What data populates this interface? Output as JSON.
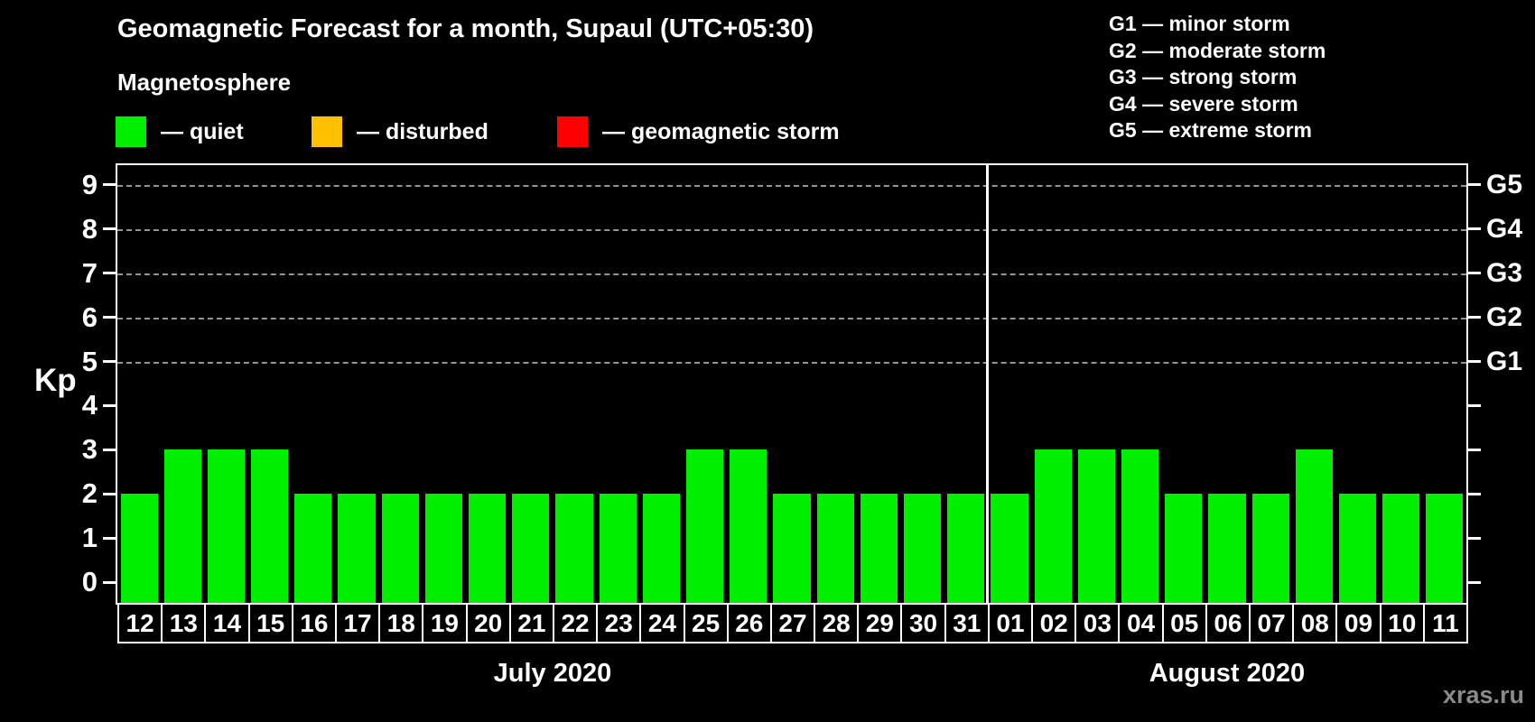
{
  "title": "Geomagnetic Forecast for a month, Supaul (UTC+05:30)",
  "subtitle": "Magnetosphere",
  "legend": [
    {
      "name": "quiet",
      "label": "— quiet",
      "color": "#00ee00"
    },
    {
      "name": "disturbed",
      "label": "— disturbed",
      "color": "#ffc000"
    },
    {
      "name": "geomagnetic-storm",
      "label": "— geomagnetic storm",
      "color": "#ff0000"
    }
  ],
  "g_legend": [
    "G1 — minor storm",
    "G2 — moderate storm",
    "G3 — strong storm",
    "G4 — severe storm",
    "G5 — extreme storm"
  ],
  "watermark": "xras.ru",
  "chart_data": {
    "type": "bar",
    "ylabel": "Kp",
    "ylim": [
      0,
      9
    ],
    "yticks": [
      0,
      1,
      2,
      3,
      4,
      5,
      6,
      7,
      8,
      9
    ],
    "gridlines_at": [
      5,
      6,
      7,
      8,
      9
    ],
    "grid": "dashed horizontal at Kp 5-9",
    "bar_color": "#00ee00",
    "right_axis_labels": [
      {
        "kp": 5,
        "label": "G1"
      },
      {
        "kp": 6,
        "label": "G2"
      },
      {
        "kp": 7,
        "label": "G3"
      },
      {
        "kp": 8,
        "label": "G4"
      },
      {
        "kp": 9,
        "label": "G5"
      }
    ],
    "months": [
      {
        "label": "July 2020",
        "categories": [
          "12",
          "13",
          "14",
          "15",
          "16",
          "17",
          "18",
          "19",
          "20",
          "21",
          "22",
          "23",
          "24",
          "25",
          "26",
          "27",
          "28",
          "29",
          "30",
          "31"
        ],
        "values": [
          2,
          3,
          3,
          3,
          2,
          2,
          2,
          2,
          2,
          2,
          2,
          2,
          2,
          3,
          3,
          2,
          2,
          2,
          2,
          2
        ]
      },
      {
        "label": "August 2020",
        "categories": [
          "01",
          "02",
          "03",
          "04",
          "05",
          "06",
          "07",
          "08",
          "09",
          "10",
          "11"
        ],
        "values": [
          2,
          3,
          3,
          3,
          2,
          2,
          2,
          3,
          2,
          2,
          2
        ]
      }
    ]
  }
}
